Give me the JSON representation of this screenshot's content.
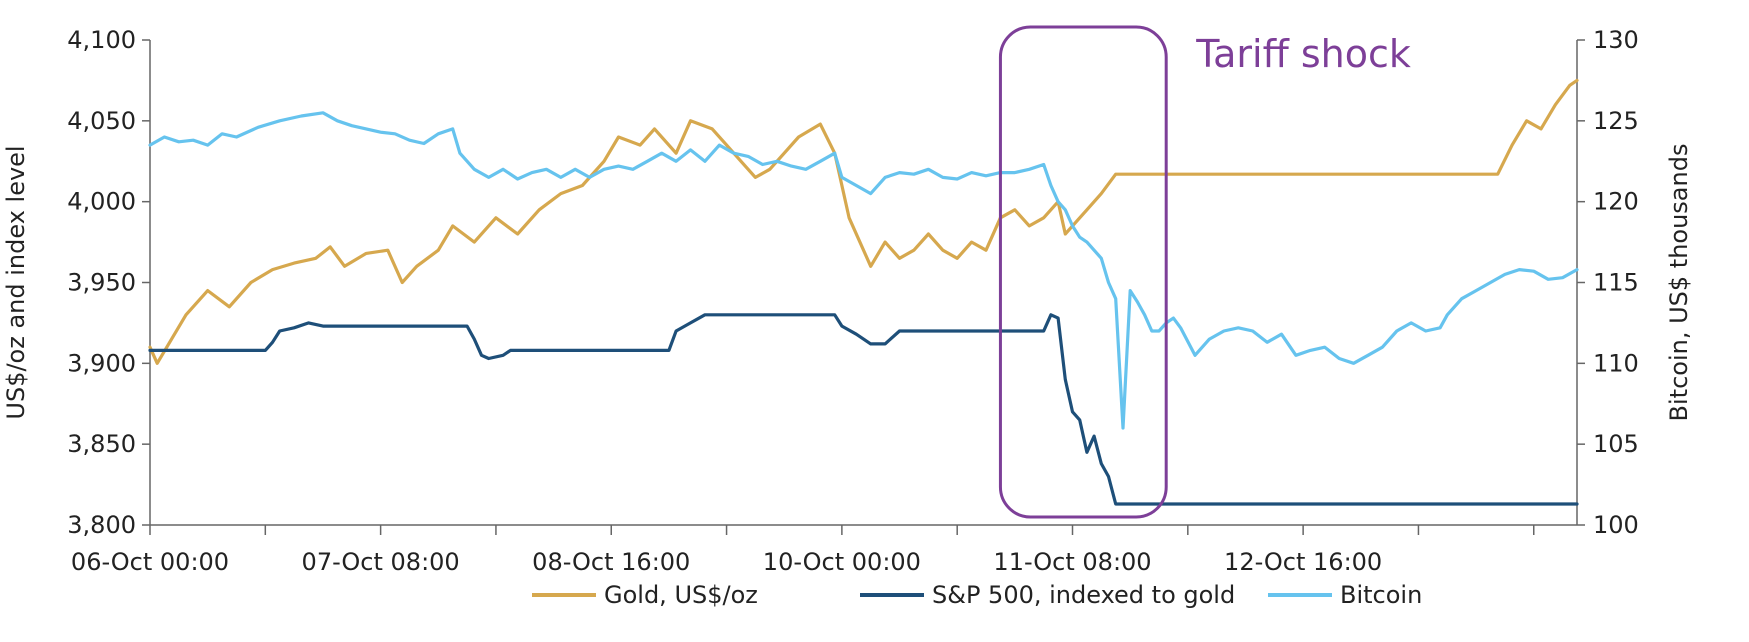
{
  "chart_data": {
    "type": "line",
    "title": "",
    "x_categories": [
      "06-Oct 00:00",
      "07-Oct 08:00",
      "08-Oct 16:00",
      "10-Oct 00:00",
      "11-Oct 08:00",
      "12-Oct 16:00"
    ],
    "x_range_hours": [
      0,
      198
    ],
    "y_left": {
      "label": "US$/oz and index level",
      "ticks": [
        "3,800",
        "3,850",
        "3,900",
        "3,950",
        "4,000",
        "4,050",
        "4,100"
      ],
      "range": [
        3800,
        4100
      ]
    },
    "y_right": {
      "label": "Bitcoin, US$ thousands",
      "ticks": [
        "100",
        "105",
        "110",
        "115",
        "120",
        "125",
        "130"
      ],
      "range": [
        100,
        130
      ]
    },
    "grid": false,
    "legend_position": "bottom",
    "annotation": {
      "text": "Tariff shock",
      "color": "#7d3f98",
      "x_start_hour": 118,
      "x_end_hour": 141
    },
    "series": [
      {
        "name": "Gold, US$/oz",
        "color": "#d6a84e",
        "axis": "left",
        "points": [
          [
            0,
            3910
          ],
          [
            1,
            3900
          ],
          [
            3,
            3915
          ],
          [
            5,
            3930
          ],
          [
            8,
            3945
          ],
          [
            11,
            3935
          ],
          [
            14,
            3950
          ],
          [
            17,
            3958
          ],
          [
            20,
            3962
          ],
          [
            23,
            3965
          ],
          [
            25,
            3972
          ],
          [
            27,
            3960
          ],
          [
            30,
            3968
          ],
          [
            33,
            3970
          ],
          [
            35,
            3950
          ],
          [
            37,
            3960
          ],
          [
            40,
            3970
          ],
          [
            42,
            3985
          ],
          [
            45,
            3975
          ],
          [
            48,
            3990
          ],
          [
            51,
            3980
          ],
          [
            54,
            3995
          ],
          [
            57,
            4005
          ],
          [
            60,
            4010
          ],
          [
            63,
            4025
          ],
          [
            65,
            4040
          ],
          [
            68,
            4035
          ],
          [
            70,
            4045
          ],
          [
            73,
            4030
          ],
          [
            75,
            4050
          ],
          [
            78,
            4045
          ],
          [
            80,
            4035
          ],
          [
            82,
            4025
          ],
          [
            84,
            4015
          ],
          [
            86,
            4020
          ],
          [
            88,
            4030
          ],
          [
            90,
            4040
          ],
          [
            93,
            4048
          ],
          [
            95,
            4030
          ],
          [
            97,
            3990
          ],
          [
            100,
            3960
          ],
          [
            102,
            3975
          ],
          [
            104,
            3965
          ],
          [
            106,
            3970
          ],
          [
            108,
            3980
          ],
          [
            110,
            3970
          ],
          [
            112,
            3965
          ],
          [
            114,
            3975
          ],
          [
            116,
            3970
          ],
          [
            118,
            3990
          ],
          [
            120,
            3995
          ],
          [
            122,
            3985
          ],
          [
            124,
            3990
          ],
          [
            126,
            4000
          ],
          [
            127,
            3980
          ],
          [
            128,
            3985
          ],
          [
            130,
            3995
          ],
          [
            132,
            4005
          ],
          [
            134,
            4017
          ],
          [
            140,
            4017
          ],
          [
            160,
            4017
          ],
          [
            187,
            4017
          ],
          [
            189,
            4035
          ],
          [
            191,
            4050
          ],
          [
            193,
            4045
          ],
          [
            195,
            4060
          ],
          [
            197,
            4072
          ],
          [
            198,
            4075
          ]
        ]
      },
      {
        "name": "S&P 500, indexed to gold",
        "color": "#1e4f79",
        "axis": "left",
        "points": [
          [
            0,
            3908
          ],
          [
            16,
            3908
          ],
          [
            17,
            3913
          ],
          [
            18,
            3920
          ],
          [
            20,
            3922
          ],
          [
            22,
            3925
          ],
          [
            24,
            3923
          ],
          [
            28,
            3923
          ],
          [
            44,
            3923
          ],
          [
            45,
            3915
          ],
          [
            46,
            3905
          ],
          [
            47,
            3903
          ],
          [
            49,
            3905
          ],
          [
            50,
            3908
          ],
          [
            54,
            3908
          ],
          [
            70,
            3908
          ],
          [
            72,
            3908
          ],
          [
            73,
            3920
          ],
          [
            75,
            3925
          ],
          [
            77,
            3930
          ],
          [
            80,
            3930
          ],
          [
            95,
            3930
          ],
          [
            96,
            3923
          ],
          [
            98,
            3918
          ],
          [
            100,
            3912
          ],
          [
            102,
            3912
          ],
          [
            104,
            3920
          ],
          [
            118,
            3920
          ],
          [
            124,
            3920
          ],
          [
            125,
            3930
          ],
          [
            126,
            3928
          ],
          [
            127,
            3890
          ],
          [
            128,
            3870
          ],
          [
            129,
            3865
          ],
          [
            130,
            3845
          ],
          [
            131,
            3855
          ],
          [
            132,
            3838
          ],
          [
            133,
            3830
          ],
          [
            134,
            3813
          ],
          [
            198,
            3813
          ]
        ]
      },
      {
        "name": "Bitcoin",
        "color": "#66c3ee",
        "axis": "right",
        "points": [
          [
            0,
            123.5
          ],
          [
            2,
            124
          ],
          [
            4,
            123.7
          ],
          [
            6,
            123.8
          ],
          [
            8,
            123.5
          ],
          [
            10,
            124.2
          ],
          [
            12,
            124
          ],
          [
            15,
            124.6
          ],
          [
            18,
            125
          ],
          [
            21,
            125.3
          ],
          [
            24,
            125.5
          ],
          [
            26,
            125
          ],
          [
            28,
            124.7
          ],
          [
            30,
            124.5
          ],
          [
            32,
            124.3
          ],
          [
            34,
            124.2
          ],
          [
            36,
            123.8
          ],
          [
            38,
            123.6
          ],
          [
            40,
            124.2
          ],
          [
            42,
            124.5
          ],
          [
            43,
            123
          ],
          [
            45,
            122
          ],
          [
            47,
            121.5
          ],
          [
            49,
            122
          ],
          [
            51,
            121.4
          ],
          [
            53,
            121.8
          ],
          [
            55,
            122
          ],
          [
            57,
            121.5
          ],
          [
            59,
            122
          ],
          [
            61,
            121.5
          ],
          [
            63,
            122
          ],
          [
            65,
            122.2
          ],
          [
            67,
            122
          ],
          [
            69,
            122.5
          ],
          [
            71,
            123
          ],
          [
            73,
            122.5
          ],
          [
            75,
            123.2
          ],
          [
            77,
            122.5
          ],
          [
            79,
            123.5
          ],
          [
            81,
            123
          ],
          [
            83,
            122.8
          ],
          [
            85,
            122.3
          ],
          [
            87,
            122.5
          ],
          [
            89,
            122.2
          ],
          [
            91,
            122
          ],
          [
            93,
            122.5
          ],
          [
            95,
            123
          ],
          [
            96,
            121.5
          ],
          [
            98,
            121
          ],
          [
            100,
            120.5
          ],
          [
            102,
            121.5
          ],
          [
            104,
            121.8
          ],
          [
            106,
            121.7
          ],
          [
            108,
            122
          ],
          [
            110,
            121.5
          ],
          [
            112,
            121.4
          ],
          [
            114,
            121.8
          ],
          [
            116,
            121.6
          ],
          [
            118,
            121.8
          ],
          [
            120,
            121.8
          ],
          [
            122,
            122
          ],
          [
            124,
            122.3
          ],
          [
            125,
            121
          ],
          [
            126,
            120
          ],
          [
            127,
            119.5
          ],
          [
            128,
            118.5
          ],
          [
            129,
            117.8
          ],
          [
            130,
            117.5
          ],
          [
            131,
            117
          ],
          [
            132,
            116.5
          ],
          [
            133,
            115
          ],
          [
            134,
            114
          ],
          [
            135,
            106
          ],
          [
            136,
            114.5
          ],
          [
            137,
            113.8
          ],
          [
            138,
            113
          ],
          [
            139,
            112
          ],
          [
            140,
            112
          ],
          [
            141,
            112.5
          ],
          [
            142,
            112.8
          ],
          [
            143,
            112.2
          ],
          [
            145,
            110.5
          ],
          [
            147,
            111.5
          ],
          [
            149,
            112
          ],
          [
            151,
            112.2
          ],
          [
            153,
            112
          ],
          [
            155,
            111.3
          ],
          [
            157,
            111.8
          ],
          [
            159,
            110.5
          ],
          [
            161,
            110.8
          ],
          [
            163,
            111
          ],
          [
            165,
            110.3
          ],
          [
            167,
            110
          ],
          [
            169,
            110.5
          ],
          [
            171,
            111
          ],
          [
            173,
            112
          ],
          [
            175,
            112.5
          ],
          [
            177,
            112
          ],
          [
            179,
            112.2
          ],
          [
            180,
            113
          ],
          [
            182,
            114
          ],
          [
            184,
            114.5
          ],
          [
            186,
            115
          ],
          [
            188,
            115.5
          ],
          [
            190,
            115.8
          ],
          [
            192,
            115.7
          ],
          [
            194,
            115.2
          ],
          [
            196,
            115.3
          ],
          [
            198,
            115.8
          ]
        ]
      }
    ]
  }
}
